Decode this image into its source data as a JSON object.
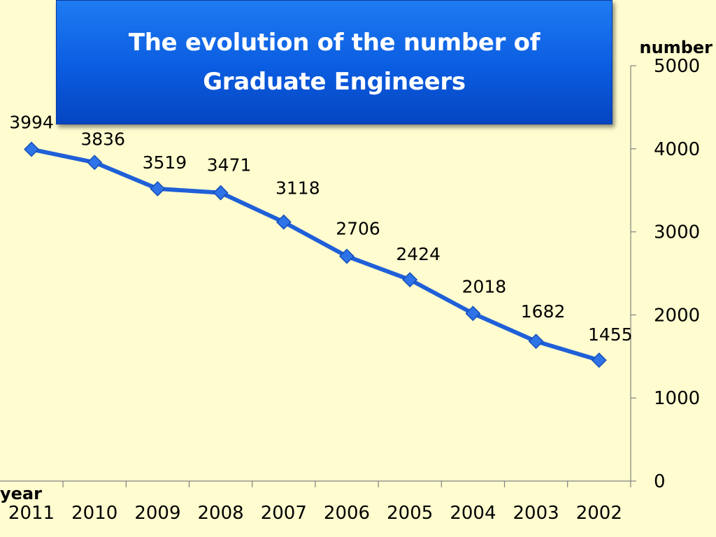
{
  "chart_data": {
    "type": "line",
    "title": "The evolution of the number of Graduate Engineers",
    "xlabel": "year",
    "ylabel": "number",
    "categories": [
      "2011",
      "2010",
      "2009",
      "2008",
      "2007",
      "2006",
      "2005",
      "2004",
      "2003",
      "2002"
    ],
    "series": [
      {
        "values": [
          3994,
          3836,
          3519,
          3471,
          3118,
          2706,
          2424,
          2018,
          1682,
          1455
        ]
      }
    ],
    "ylim": [
      0,
      5000
    ],
    "yticks": [
      0,
      1000,
      2000,
      3000,
      4000,
      5000
    ],
    "y_axis_side": "right",
    "grid": false,
    "legend": "none",
    "data_labels": true,
    "colors": {
      "line": "#1f5fd8",
      "marker": "#2f73e8",
      "background": "#fffdcf",
      "title_bg": "#0a5ce0"
    }
  }
}
